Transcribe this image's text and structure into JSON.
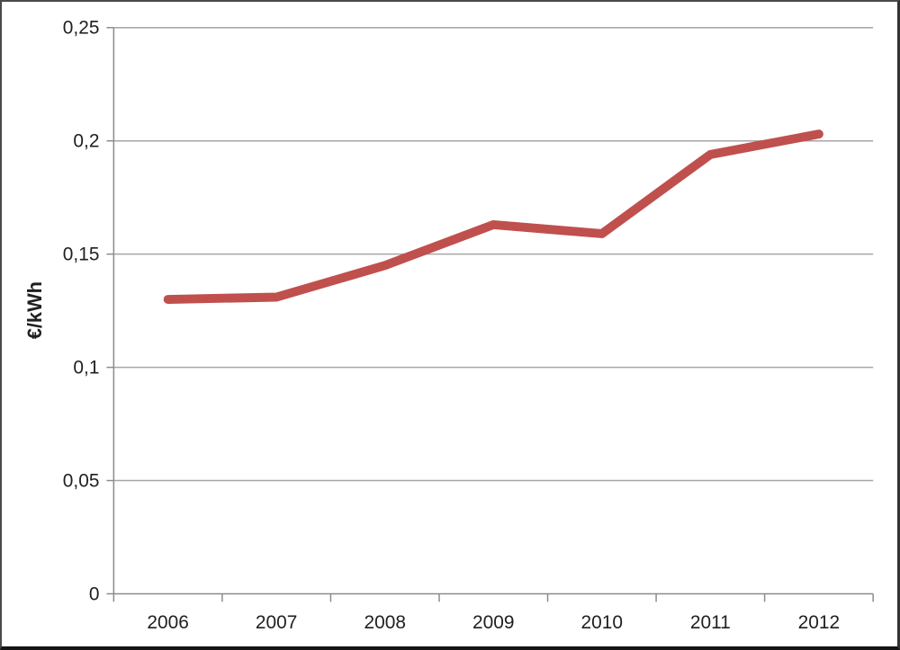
{
  "chart_data": {
    "type": "line",
    "title": "",
    "xlabel": "",
    "ylabel": "€/kWh",
    "categories": [
      "2006",
      "2007",
      "2008",
      "2009",
      "2010",
      "2011",
      "2012"
    ],
    "series": [
      {
        "values": [
          0.13,
          0.131,
          0.145,
          0.163,
          0.159,
          0.194,
          0.203
        ]
      }
    ],
    "ylim": [
      0,
      0.25
    ],
    "ytick_values": [
      0,
      0.05,
      0.1,
      0.15,
      0.2,
      0.25
    ],
    "ytick_labels": [
      "0",
      "0,05",
      "0,1",
      "0,15",
      "0,2",
      "0,25"
    ],
    "grid": true,
    "legend": false,
    "colors": {
      "line": "#C0504D",
      "gridline": "#A6A6A6",
      "axis": "#8C8C8C",
      "text": "#1F1F1F",
      "background": "#FFFFFF"
    },
    "line_width": 10
  }
}
